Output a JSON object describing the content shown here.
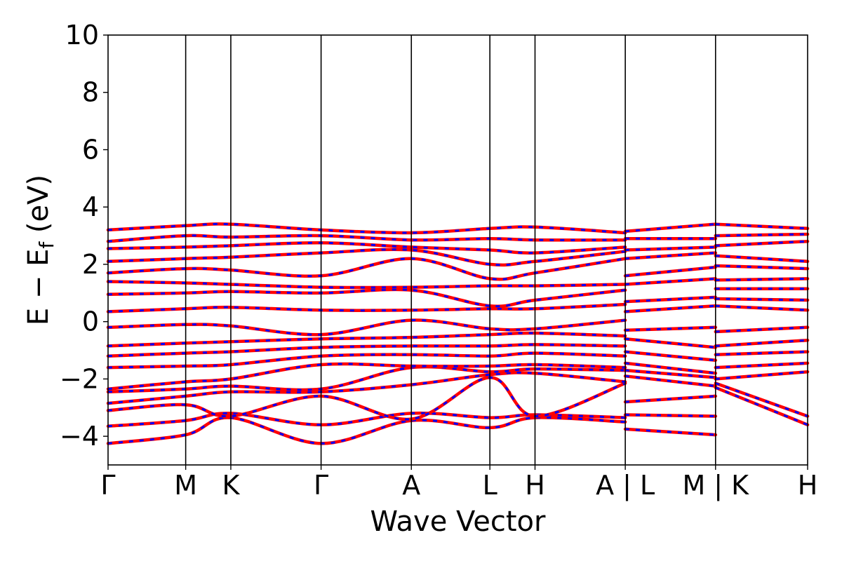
{
  "chart_data": {
    "type": "line",
    "title": "",
    "xlabel": "Wave Vector",
    "ylabel": "E − Eᶠ (eV)",
    "ylabel_main": "E − E",
    "ylabel_sub": "f",
    "ylabel_unit": " (eV)",
    "ylim": [
      -5,
      10
    ],
    "yticks": [
      -4,
      -2,
      0,
      2,
      4,
      6,
      8,
      10
    ],
    "ytick_labels": [
      "−4",
      "−2",
      "0",
      "2",
      "4",
      "6",
      "8",
      "10"
    ],
    "xlim": [
      0,
      7.75
    ],
    "kpoints": [
      {
        "label": "Γ",
        "x": 0.0
      },
      {
        "label": "M",
        "x": 0.86
      },
      {
        "label": "K",
        "x": 1.36
      },
      {
        "label": "Γ",
        "x": 2.36
      },
      {
        "label": "A",
        "x": 3.36
      },
      {
        "label": "L",
        "x": 4.23
      },
      {
        "label": "H",
        "x": 4.73
      },
      {
        "label": "A | L",
        "x": 5.73
      },
      {
        "label": "M | K",
        "x": 6.73
      },
      {
        "label": "H",
        "x": 7.75
      }
    ],
    "grid": false,
    "legend": "none",
    "series_colors": {
      "spin_up": "#ff0000",
      "spin_down": "#0000ff"
    },
    "series": [
      {
        "values": [
          [
            0,
            -4.25
          ],
          [
            0.86,
            -3.95
          ],
          [
            1.36,
            -3.35
          ],
          [
            2.36,
            -4.25
          ],
          [
            3.36,
            -3.45
          ],
          [
            4.23,
            -3.7
          ],
          [
            4.73,
            -3.35
          ],
          [
            5.73,
            -3.5
          ]
        ]
      },
      {
        "values": [
          [
            0,
            -3.65
          ],
          [
            0.86,
            -3.45
          ],
          [
            1.36,
            -3.2
          ],
          [
            2.36,
            -3.6
          ],
          [
            3.36,
            -3.2
          ],
          [
            4.23,
            -3.35
          ],
          [
            4.73,
            -3.25
          ],
          [
            5.73,
            -3.35
          ]
        ]
      },
      {
        "values": [
          [
            0,
            -3.1
          ],
          [
            0.86,
            -2.9
          ],
          [
            1.36,
            -3.3
          ],
          [
            2.36,
            -2.6
          ],
          [
            3.36,
            -3.4
          ],
          [
            4.23,
            -1.95
          ],
          [
            4.73,
            -3.3
          ],
          [
            5.73,
            -2.15
          ]
        ]
      },
      {
        "values": [
          [
            0,
            -2.85
          ],
          [
            0.86,
            -2.6
          ],
          [
            1.36,
            -2.45
          ],
          [
            2.36,
            -2.45
          ],
          [
            3.36,
            -2.2
          ],
          [
            4.23,
            -1.85
          ],
          [
            4.73,
            -1.8
          ],
          [
            5.73,
            -2.1
          ]
        ]
      },
      {
        "values": [
          [
            0,
            -2.45
          ],
          [
            0.86,
            -2.35
          ],
          [
            1.36,
            -2.25
          ],
          [
            2.36,
            -2.35
          ],
          [
            3.36,
            -1.6
          ],
          [
            4.23,
            -1.75
          ],
          [
            4.73,
            -1.65
          ],
          [
            5.73,
            -1.7
          ]
        ]
      },
      {
        "values": [
          [
            0,
            -2.35
          ],
          [
            0.86,
            -2.1
          ],
          [
            1.36,
            -2.0
          ],
          [
            2.36,
            -1.5
          ],
          [
            3.36,
            -1.55
          ],
          [
            4.23,
            -1.55
          ],
          [
            4.73,
            -1.5
          ],
          [
            5.73,
            -1.6
          ]
        ]
      },
      {
        "values": [
          [
            0,
            -1.6
          ],
          [
            0.86,
            -1.55
          ],
          [
            1.36,
            -1.5
          ],
          [
            2.36,
            -1.2
          ],
          [
            3.36,
            -1.15
          ],
          [
            4.23,
            -1.2
          ],
          [
            4.73,
            -1.1
          ],
          [
            5.73,
            -1.2
          ]
        ]
      },
      {
        "values": [
          [
            0,
            -1.2
          ],
          [
            0.86,
            -1.1
          ],
          [
            1.36,
            -1.05
          ],
          [
            2.36,
            -0.9
          ],
          [
            3.36,
            -0.85
          ],
          [
            4.23,
            -0.85
          ],
          [
            4.73,
            -0.8
          ],
          [
            5.73,
            -0.85
          ]
        ]
      },
      {
        "values": [
          [
            0,
            -0.85
          ],
          [
            0.86,
            -0.75
          ],
          [
            1.36,
            -0.7
          ],
          [
            2.36,
            -0.6
          ],
          [
            3.36,
            -0.55
          ],
          [
            4.23,
            -0.45
          ],
          [
            4.73,
            -0.4
          ],
          [
            5.73,
            -0.5
          ]
        ]
      },
      {
        "values": [
          [
            0,
            -0.2
          ],
          [
            0.86,
            -0.1
          ],
          [
            1.36,
            -0.15
          ],
          [
            2.36,
            -0.45
          ],
          [
            3.36,
            0.05
          ],
          [
            4.23,
            -0.25
          ],
          [
            4.73,
            -0.25
          ],
          [
            5.73,
            0.05
          ]
        ]
      },
      {
        "values": [
          [
            0,
            0.35
          ],
          [
            0.86,
            0.45
          ],
          [
            1.36,
            0.5
          ],
          [
            2.36,
            0.4
          ],
          [
            3.36,
            0.4
          ],
          [
            4.23,
            0.45
          ],
          [
            4.73,
            0.45
          ],
          [
            5.73,
            0.6
          ]
        ]
      },
      {
        "values": [
          [
            0,
            0.95
          ],
          [
            0.86,
            1.0
          ],
          [
            1.36,
            1.05
          ],
          [
            2.36,
            1.0
          ],
          [
            3.36,
            1.1
          ],
          [
            4.23,
            0.55
          ],
          [
            4.73,
            0.75
          ],
          [
            5.73,
            1.1
          ]
        ]
      },
      {
        "values": [
          [
            0,
            1.4
          ],
          [
            0.86,
            1.35
          ],
          [
            1.36,
            1.3
          ],
          [
            2.36,
            1.2
          ],
          [
            3.36,
            1.2
          ],
          [
            4.23,
            1.25
          ],
          [
            4.73,
            1.25
          ],
          [
            5.73,
            1.3
          ]
        ]
      },
      {
        "values": [
          [
            0,
            1.7
          ],
          [
            0.86,
            1.85
          ],
          [
            1.36,
            1.8
          ],
          [
            2.36,
            1.6
          ],
          [
            3.36,
            2.2
          ],
          [
            4.23,
            1.5
          ],
          [
            4.73,
            1.7
          ],
          [
            5.73,
            2.2
          ]
        ]
      },
      {
        "values": [
          [
            0,
            2.1
          ],
          [
            0.86,
            2.2
          ],
          [
            1.36,
            2.25
          ],
          [
            2.36,
            2.4
          ],
          [
            3.36,
            2.5
          ],
          [
            4.23,
            2.0
          ],
          [
            4.73,
            2.1
          ],
          [
            5.73,
            2.45
          ]
        ]
      },
      {
        "values": [
          [
            0,
            2.55
          ],
          [
            0.86,
            2.6
          ],
          [
            1.36,
            2.65
          ],
          [
            2.36,
            2.75
          ],
          [
            3.36,
            2.6
          ],
          [
            4.23,
            2.5
          ],
          [
            4.73,
            2.4
          ],
          [
            5.73,
            2.6
          ]
        ]
      },
      {
        "values": [
          [
            0,
            2.8
          ],
          [
            0.86,
            3.0
          ],
          [
            1.36,
            2.95
          ],
          [
            2.36,
            3.0
          ],
          [
            3.36,
            2.85
          ],
          [
            4.23,
            2.9
          ],
          [
            4.73,
            2.85
          ],
          [
            5.73,
            2.85
          ]
        ]
      },
      {
        "values": [
          [
            0,
            3.2
          ],
          [
            0.86,
            3.35
          ],
          [
            1.36,
            3.4
          ],
          [
            2.36,
            3.2
          ],
          [
            3.36,
            3.1
          ],
          [
            4.23,
            3.25
          ],
          [
            4.73,
            3.3
          ],
          [
            5.73,
            3.1
          ]
        ]
      },
      {
        "values": [
          [
            5.73,
            -3.75
          ],
          [
            6.73,
            -3.95
          ]
        ]
      },
      {
        "values": [
          [
            5.73,
            -3.25
          ],
          [
            6.73,
            -3.3
          ]
        ]
      },
      {
        "values": [
          [
            5.73,
            -2.8
          ],
          [
            6.73,
            -2.6
          ]
        ]
      },
      {
        "values": [
          [
            5.73,
            -1.9
          ],
          [
            6.73,
            -2.25
          ]
        ]
      },
      {
        "values": [
          [
            5.73,
            -1.7
          ],
          [
            6.73,
            -1.95
          ]
        ]
      },
      {
        "values": [
          [
            5.73,
            -1.45
          ],
          [
            6.73,
            -1.8
          ]
        ]
      },
      {
        "values": [
          [
            5.73,
            -1.05
          ],
          [
            6.73,
            -1.35
          ]
        ]
      },
      {
        "values": [
          [
            5.73,
            -0.6
          ],
          [
            6.73,
            -0.9
          ]
        ]
      },
      {
        "values": [
          [
            5.73,
            -0.3
          ],
          [
            6.73,
            -0.2
          ]
        ]
      },
      {
        "values": [
          [
            5.73,
            0.35
          ],
          [
            6.73,
            0.55
          ]
        ]
      },
      {
        "values": [
          [
            5.73,
            0.7
          ],
          [
            6.73,
            0.85
          ]
        ]
      },
      {
        "values": [
          [
            5.73,
            1.3
          ],
          [
            6.73,
            1.5
          ]
        ]
      },
      {
        "values": [
          [
            5.73,
            1.6
          ],
          [
            6.73,
            1.9
          ]
        ]
      },
      {
        "values": [
          [
            5.73,
            2.2
          ],
          [
            6.73,
            2.4
          ]
        ]
      },
      {
        "values": [
          [
            5.73,
            2.5
          ],
          [
            6.73,
            2.6
          ]
        ]
      },
      {
        "values": [
          [
            5.73,
            2.9
          ],
          [
            6.73,
            2.9
          ]
        ]
      },
      {
        "values": [
          [
            5.73,
            3.15
          ],
          [
            6.73,
            3.4
          ]
        ]
      },
      {
        "values": [
          [
            6.73,
            -2.3
          ],
          [
            7.75,
            -3.6
          ]
        ]
      },
      {
        "values": [
          [
            6.73,
            -2.15
          ],
          [
            7.75,
            -3.3
          ]
        ]
      },
      {
        "values": [
          [
            6.73,
            -2.0
          ],
          [
            7.75,
            -1.75
          ]
        ]
      },
      {
        "values": [
          [
            6.73,
            -1.6
          ],
          [
            7.75,
            -1.45
          ]
        ]
      },
      {
        "values": [
          [
            6.73,
            -1.15
          ],
          [
            7.75,
            -1.05
          ]
        ]
      },
      {
        "values": [
          [
            6.73,
            -0.85
          ],
          [
            7.75,
            -0.65
          ]
        ]
      },
      {
        "values": [
          [
            6.73,
            -0.35
          ],
          [
            7.75,
            -0.2
          ]
        ]
      },
      {
        "values": [
          [
            6.73,
            0.55
          ],
          [
            7.75,
            0.4
          ]
        ]
      },
      {
        "values": [
          [
            6.73,
            0.8
          ],
          [
            7.75,
            0.75
          ]
        ]
      },
      {
        "values": [
          [
            6.73,
            1.15
          ],
          [
            7.75,
            1.15
          ]
        ]
      },
      {
        "values": [
          [
            6.73,
            1.45
          ],
          [
            7.75,
            1.5
          ]
        ]
      },
      {
        "values": [
          [
            6.73,
            1.95
          ],
          [
            7.75,
            1.85
          ]
        ]
      },
      {
        "values": [
          [
            6.73,
            2.3
          ],
          [
            7.75,
            2.1
          ]
        ]
      },
      {
        "values": [
          [
            6.73,
            2.65
          ],
          [
            7.75,
            2.8
          ]
        ]
      },
      {
        "values": [
          [
            6.73,
            3.0
          ],
          [
            7.75,
            3.05
          ]
        ]
      },
      {
        "values": [
          [
            6.73,
            3.4
          ],
          [
            7.75,
            3.25
          ]
        ]
      }
    ]
  }
}
